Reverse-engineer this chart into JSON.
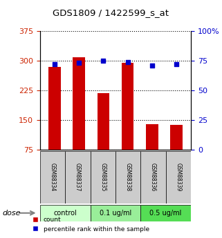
{
  "title": "GDS1809 / 1422599_s_at",
  "samples": [
    "GSM88334",
    "GSM88337",
    "GSM88335",
    "GSM88338",
    "GSM88336",
    "GSM88339"
  ],
  "counts": [
    285,
    308,
    218,
    295,
    140,
    138
  ],
  "percentile_ranks": [
    72,
    73,
    75,
    74,
    71,
    72
  ],
  "groups": [
    {
      "label": "control",
      "indices": [
        0,
        1
      ],
      "color": "#ccffcc"
    },
    {
      "label": "0.1 ug/ml",
      "indices": [
        2,
        3
      ],
      "color": "#99ee99"
    },
    {
      "label": "0.5 ug/ml",
      "indices": [
        4,
        5
      ],
      "color": "#55dd55"
    }
  ],
  "ylim_left": [
    75,
    375
  ],
  "ylim_right": [
    0,
    100
  ],
  "yticks_left": [
    75,
    150,
    225,
    300,
    375
  ],
  "yticks_right": [
    0,
    25,
    50,
    75,
    100
  ],
  "bar_color": "#cc0000",
  "dot_color": "#0000cc",
  "bar_width": 0.5,
  "left_axis_color": "#cc2200",
  "right_axis_color": "#0000cc",
  "grid_color": "#000000",
  "sample_box_color": "#cccccc",
  "figsize": [
    3.21,
    3.45
  ],
  "dpi": 100
}
